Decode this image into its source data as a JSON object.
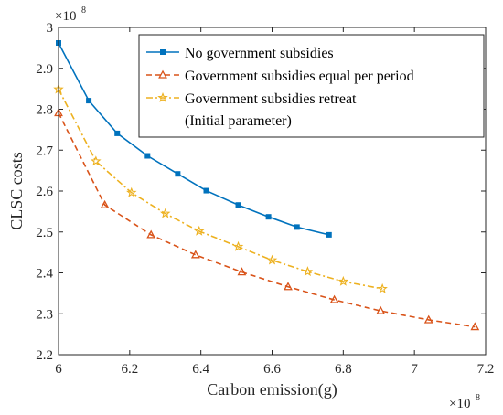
{
  "chart_data": {
    "type": "line",
    "xlabel": "Carbon emission(g)",
    "ylabel": "CLSC costs",
    "x_multiplier": {
      "base": "×10",
      "exp": "8"
    },
    "y_multiplier": {
      "base": "×10",
      "exp": "8"
    },
    "xlim": [
      6,
      7.2
    ],
    "ylim": [
      2.2,
      3.0
    ],
    "xticks": [
      6,
      6.2,
      6.4,
      6.6,
      6.8,
      7,
      7.2
    ],
    "xtick_labels": [
      "6",
      "6.2",
      "6.4",
      "6.6",
      "6.8",
      "7",
      "7.2"
    ],
    "yticks": [
      2.2,
      2.3,
      2.4,
      2.5,
      2.6,
      2.7,
      2.8,
      2.9,
      3.0
    ],
    "ytick_labels": [
      "2.2",
      "2.3",
      "2.4",
      "2.5",
      "2.6",
      "2.7",
      "2.8",
      "2.9",
      "3"
    ],
    "grid": false,
    "legend_position": "top-right",
    "series": [
      {
        "name": "No government subsidies",
        "color": "#0072BD",
        "dash": "solid",
        "marker": "square",
        "points": [
          [
            6.0,
            2.962
          ],
          [
            6.085,
            2.821
          ],
          [
            6.165,
            2.741
          ],
          [
            6.25,
            2.686
          ],
          [
            6.335,
            2.642
          ],
          [
            6.415,
            2.601
          ],
          [
            6.505,
            2.566
          ],
          [
            6.59,
            2.537
          ],
          [
            6.67,
            2.512
          ],
          [
            6.76,
            2.493
          ]
        ]
      },
      {
        "name": "Government subsidies equal per period",
        "color": "#D95319",
        "dash": "dashed",
        "marker": "triangle",
        "points": [
          [
            6.0,
            2.791
          ],
          [
            6.13,
            2.566
          ],
          [
            6.26,
            2.493
          ],
          [
            6.385,
            2.444
          ],
          [
            6.515,
            2.402
          ],
          [
            6.645,
            2.366
          ],
          [
            6.775,
            2.334
          ],
          [
            6.905,
            2.307
          ],
          [
            7.04,
            2.285
          ],
          [
            7.17,
            2.268
          ]
        ]
      },
      {
        "name": "Government subsidies retreat\n(Initial parameter)",
        "name_lines": [
          "Government subsidies retreat",
          "(Initial parameter)"
        ],
        "color": "#EDB120",
        "dash": "dashdot",
        "marker": "star",
        "points": [
          [
            6.0,
            2.849
          ],
          [
            6.105,
            2.673
          ],
          [
            6.205,
            2.596
          ],
          [
            6.3,
            2.545
          ],
          [
            6.395,
            2.502
          ],
          [
            6.505,
            2.464
          ],
          [
            6.6,
            2.431
          ],
          [
            6.7,
            2.403
          ],
          [
            6.8,
            2.379
          ],
          [
            6.91,
            2.361
          ]
        ]
      }
    ]
  }
}
